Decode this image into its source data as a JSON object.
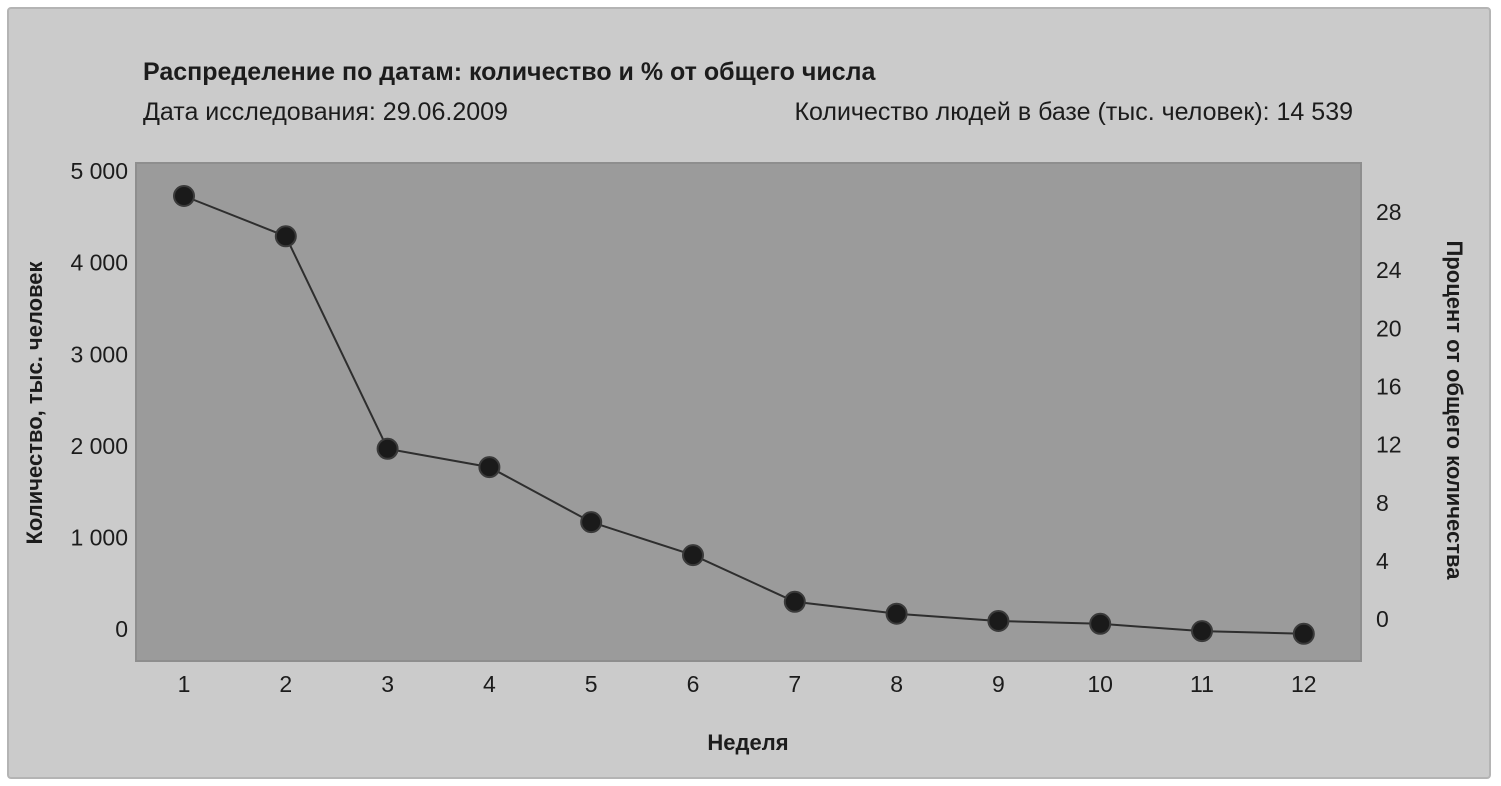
{
  "chart_data": {
    "type": "line",
    "title": "Распределение по датам: количество и % от общего числа",
    "subtitle_left": "Дата исследования: 29.06.2009",
    "subtitle_right": "Количество людей в базе (тыс. человек): 14 539",
    "xlabel": "Неделя",
    "ylabel": "Количество, тыс. человек",
    "ylabel_right": "Процент от общего количества",
    "x": [
      1,
      2,
      3,
      4,
      5,
      6,
      7,
      8,
      9,
      10,
      11,
      12
    ],
    "series": [
      {
        "values": [
          4760,
          4320,
          2000,
          1800,
          1200,
          840,
          330,
          200,
          120,
          90,
          10,
          -20
        ]
      }
    ],
    "ylim": [
      -300,
      5100
    ],
    "y_ticks": [
      0,
      1000,
      2000,
      3000,
      4000,
      5000
    ],
    "y_tick_labels": [
      "0",
      "1 000",
      "2 000",
      "3 000",
      "4 000",
      "5 000"
    ],
    "y2_ticks": [
      0,
      4,
      8,
      12,
      16,
      20,
      24,
      28
    ],
    "y2_tick_labels": [
      "0",
      "4",
      "8",
      "12",
      "16",
      "20",
      "24",
      "28"
    ],
    "colors": {
      "frame": "#cbcbcb",
      "plot_bg": "#9b9b9b",
      "plot_border": "#8e8e8e",
      "line": "#2e2e2e",
      "marker": "#1a1a1a"
    },
    "grid": false,
    "markers": true
  }
}
